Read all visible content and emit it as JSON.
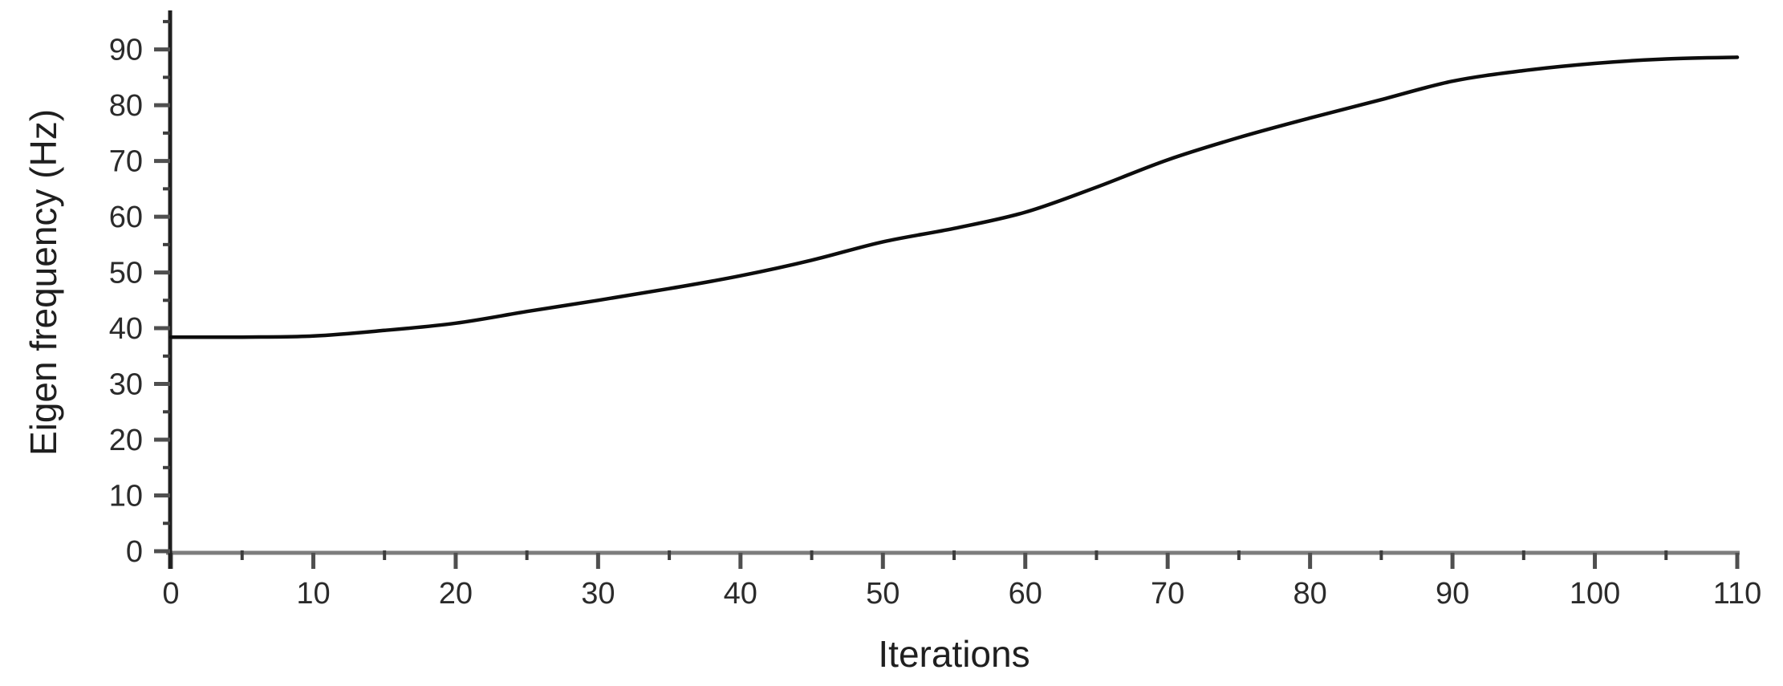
{
  "chart_data": {
    "type": "line",
    "title": "",
    "xlabel": "Iterations",
    "ylabel": "Eigen frequency (Hz)",
    "xlim": [
      0,
      110
    ],
    "ylim": [
      0,
      97
    ],
    "x_ticks": [
      0,
      10,
      20,
      30,
      40,
      50,
      60,
      70,
      80,
      90,
      100,
      110
    ],
    "y_ticks": [
      0,
      10,
      20,
      30,
      40,
      50,
      60,
      70,
      80,
      90
    ],
    "minor_tick_step": 5,
    "grid": false,
    "legend": "none",
    "series": [
      {
        "name": "Eigen frequency",
        "color": "#0d0d0d",
        "line_width": 4.5,
        "x": [
          0,
          5,
          10,
          15,
          20,
          25,
          30,
          35,
          40,
          45,
          50,
          55,
          60,
          65,
          70,
          75,
          80,
          85,
          90,
          95,
          100,
          105,
          110
        ],
        "y": [
          38.4,
          38.4,
          38.6,
          39.6,
          40.9,
          43.0,
          45.0,
          47.1,
          49.4,
          52.2,
          55.5,
          57.9,
          60.8,
          65.3,
          70.2,
          74.2,
          77.7,
          81.0,
          84.3,
          86.2,
          87.5,
          88.3,
          88.6
        ]
      }
    ],
    "style": {
      "background": "#ffffff",
      "x_axis_color": "#7d7d7d",
      "y_axis_color": "#1f1f1f",
      "major_tick_color": "#4f4f4f",
      "minor_tick_color": "#3d3d3d",
      "tick_label_color": "#2b2b2b",
      "tick_label_size": 38,
      "axis_title_color": "#1f1f1f"
    }
  }
}
